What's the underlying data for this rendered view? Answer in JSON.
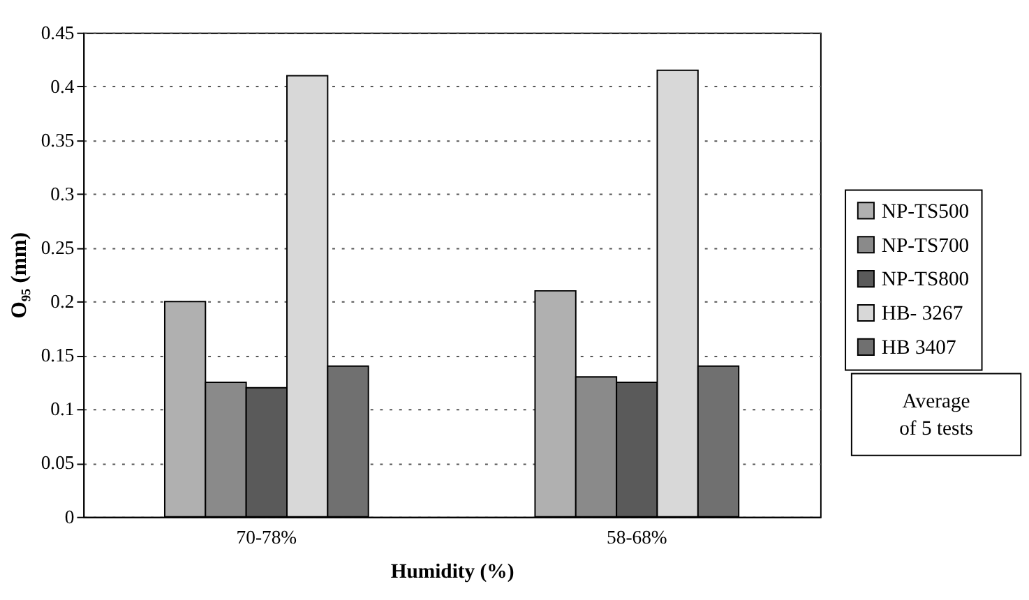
{
  "chart_data": {
    "type": "bar",
    "xlabel": "Humidity (%)",
    "ylabel": "O₉₅ (mm)",
    "categories": [
      "70-78%",
      "58-68%"
    ],
    "series": [
      {
        "name": "NP-TS500",
        "color": "#b0b0b0",
        "values": [
          0.2,
          0.21
        ]
      },
      {
        "name": "NP-TS700",
        "color": "#8a8a8a",
        "values": [
          0.125,
          0.13
        ]
      },
      {
        "name": "NP-TS800",
        "color": "#5a5a5a",
        "values": [
          0.12,
          0.125
        ]
      },
      {
        "name": "HB- 3267",
        "color": "#d8d8d8",
        "values": [
          0.41,
          0.415
        ]
      },
      {
        "name": "HB 3407",
        "color": "#707070",
        "values": [
          0.14,
          0.14
        ]
      }
    ],
    "ylim": [
      0,
      0.45
    ],
    "yticks": [
      0,
      0.05,
      0.1,
      0.15,
      0.2,
      0.25,
      0.3,
      0.35,
      0.4,
      0.45
    ],
    "grid": "y",
    "legend": "right",
    "annotations": [
      "Average of 5 tests"
    ]
  }
}
